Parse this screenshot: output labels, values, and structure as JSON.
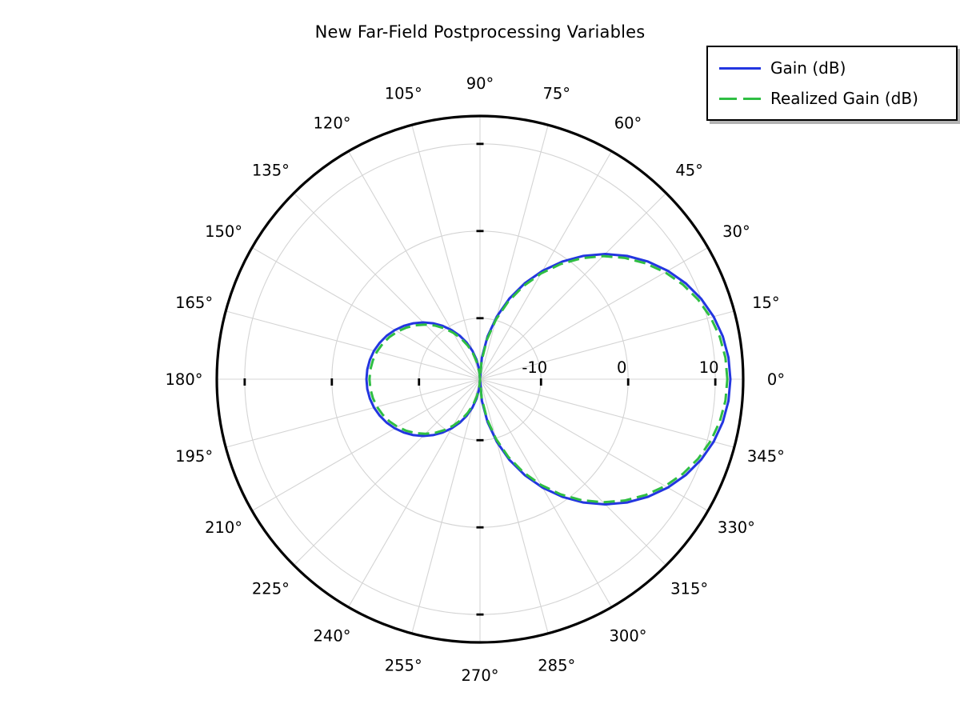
{
  "title": "New Far-Field Postprocessing Variables",
  "legend": {
    "items": [
      {
        "label": "Gain (dB)",
        "style": "solid"
      },
      {
        "label": "Realized Gain (dB)",
        "style": "dashed"
      }
    ]
  },
  "colors": {
    "gain_line": "#2336e0",
    "realized_gain_line": "#2fbe43",
    "grid": "#d4d4d4",
    "axis": "#000000",
    "legend_shadow": "#b3b3b3",
    "background": "#ffffff"
  },
  "chart_data": {
    "type": "line",
    "projection": "polar",
    "title": "New Far-Field Postprocessing Variables",
    "angle_unit": "degrees",
    "grid": true,
    "legend_position": "top-right",
    "radial_axis": {
      "min": -17,
      "max": 13.2,
      "ticks": [
        -10,
        0,
        10
      ],
      "tick_labels": [
        "-10",
        "0",
        "10"
      ]
    },
    "angle_ticks_deg": [
      0,
      15,
      30,
      45,
      60,
      75,
      90,
      105,
      120,
      135,
      150,
      165,
      180,
      195,
      210,
      225,
      240,
      255,
      270,
      285,
      300,
      315,
      330,
      345
    ],
    "angle_tick_labels": [
      "0°",
      "15°",
      "30°",
      "45°",
      "60°",
      "75°",
      "90°",
      "105°",
      "120°",
      "135°",
      "150°",
      "165°",
      "180°",
      "195°",
      "210°",
      "225°",
      "240°",
      "255°",
      "270°",
      "285°",
      "300°",
      "315°",
      "330°",
      "345°"
    ],
    "angles": [
      0,
      5,
      10,
      15,
      20,
      25,
      30,
      35,
      40,
      45,
      50,
      55,
      60,
      65,
      70,
      75,
      80,
      85,
      90,
      95,
      100,
      105,
      110,
      115,
      120,
      125,
      130,
      135,
      140,
      145,
      150,
      155,
      160,
      165,
      170,
      175,
      180,
      185,
      190,
      195,
      200,
      205,
      210,
      215,
      220,
      225,
      230,
      235,
      240,
      245,
      250,
      255,
      260,
      265,
      270,
      275,
      280,
      285,
      290,
      295,
      300,
      305,
      310,
      315,
      320,
      325,
      330,
      335,
      340,
      345,
      350,
      355,
      360
    ],
    "series": [
      {
        "name": "Gain (dB)",
        "color": "#2336e0",
        "line_style": "solid",
        "values": [
          11.73,
          11.62,
          11.29,
          10.75,
          10.0,
          9.04,
          7.88,
          6.53,
          5.01,
          3.32,
          1.47,
          -0.52,
          -2.64,
          -4.86,
          -7.17,
          -9.56,
          -12.01,
          -14.5,
          -17.0,
          -15.86,
          -14.74,
          -13.63,
          -12.54,
          -11.49,
          -10.49,
          -9.53,
          -8.62,
          -7.79,
          -7.02,
          -6.33,
          -5.72,
          -5.19,
          -4.76,
          -4.41,
          -4.17,
          -4.02,
          -3.97,
          -4.02,
          -4.17,
          -4.41,
          -4.76,
          -5.19,
          -5.72,
          -6.33,
          -7.02,
          -7.79,
          -8.62,
          -9.53,
          -10.49,
          -11.49,
          -12.54,
          -13.63,
          -14.74,
          -15.86,
          -17.0,
          -14.5,
          -12.01,
          -9.56,
          -7.17,
          -4.86,
          -2.64,
          -0.52,
          1.47,
          3.32,
          5.01,
          6.53,
          7.88,
          9.04,
          10.0,
          10.75,
          11.29,
          11.62,
          11.73
        ]
      },
      {
        "name": "Realized Gain (dB)",
        "color": "#2fbe43",
        "line_style": "dashed",
        "values": [
          11.38,
          11.27,
          10.94,
          10.4,
          9.65,
          8.69,
          7.53,
          6.18,
          4.66,
          2.97,
          1.12,
          -0.87,
          -2.99,
          -5.21,
          -7.52,
          -9.91,
          -12.36,
          -14.85,
          -17.0,
          -16.21,
          -15.09,
          -13.98,
          -12.89,
          -11.84,
          -10.84,
          -9.88,
          -8.97,
          -8.14,
          -7.37,
          -6.68,
          -6.07,
          -5.54,
          -5.11,
          -4.76,
          -4.52,
          -4.37,
          -4.32,
          -4.37,
          -4.52,
          -4.76,
          -5.11,
          -5.54,
          -6.07,
          -6.68,
          -7.37,
          -8.14,
          -8.97,
          -9.88,
          -10.84,
          -11.84,
          -12.89,
          -13.98,
          -15.09,
          -16.21,
          -17.0,
          -14.85,
          -12.36,
          -9.91,
          -7.52,
          -5.21,
          -2.99,
          -0.87,
          1.12,
          2.97,
          4.66,
          6.18,
          7.53,
          8.69,
          9.65,
          10.4,
          10.94,
          11.27,
          11.38
        ]
      }
    ]
  }
}
